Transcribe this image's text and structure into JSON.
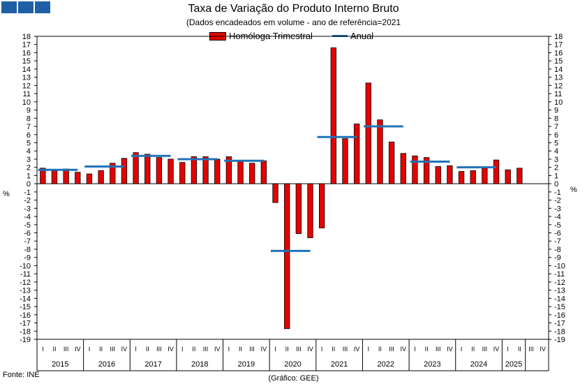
{
  "header": {
    "title": "Taxa de Variação do Produto Interno Bruto",
    "subtitle": "(Dados encadeados em volume - ano de referência=2021"
  },
  "legend": {
    "bar_label": "Homóloga Trimestral",
    "line_label": "Anual"
  },
  "footer": {
    "source": "Fonte: INE",
    "credit": "(Gráfico: GEE)"
  },
  "chart_data": {
    "type": "bar",
    "title": "Taxa de Variação do Produto Interno Bruto",
    "subtitle": "(Dados encadeados em volume - ano de referência=2021",
    "ylabel": "%",
    "ylim": [
      -19,
      18
    ],
    "yticks": [
      18,
      17,
      16,
      15,
      14,
      13,
      12,
      11,
      10,
      9,
      8,
      7,
      6,
      5,
      4,
      3,
      2,
      1,
      0,
      -1,
      -2,
      -3,
      -4,
      -5,
      -6,
      -7,
      -8,
      -9,
      -10,
      -11,
      -12,
      -13,
      -14,
      -15,
      -16,
      -17,
      -18,
      -19
    ],
    "quarter_labels": [
      "I",
      "II",
      "III",
      "IV"
    ],
    "years": [
      "2015",
      "2016",
      "2017",
      "2018",
      "2019",
      "2020",
      "2021",
      "2022",
      "2023",
      "2024",
      "2025"
    ],
    "legend_position": "top-center",
    "colors": {
      "bar": "#e60000",
      "bar_border": "#000000",
      "line": "#1f73b7"
    },
    "series": [
      {
        "name": "Homóloga Trimestral",
        "type": "bar",
        "values": [
          1.9,
          1.6,
          1.8,
          1.4,
          1.2,
          1.6,
          2.5,
          3.1,
          3.8,
          3.6,
          3.2,
          3.0,
          2.6,
          3.3,
          3.3,
          3.0,
          3.3,
          2.7,
          2.5,
          2.8,
          -2.3,
          -17.7,
          -6.1,
          -6.6,
          -5.4,
          16.6,
          5.5,
          7.3,
          12.3,
          7.8,
          5.1,
          3.7,
          3.4,
          3.2,
          2.1,
          2.2,
          1.5,
          1.6,
          1.9,
          2.9,
          1.7,
          1.9
        ]
      },
      {
        "name": "Anual",
        "type": "line",
        "values": [
          1.7,
          2.1,
          3.4,
          3.0,
          2.8,
          -8.2,
          5.7,
          7.0,
          2.7,
          2.0
        ]
      }
    ]
  }
}
